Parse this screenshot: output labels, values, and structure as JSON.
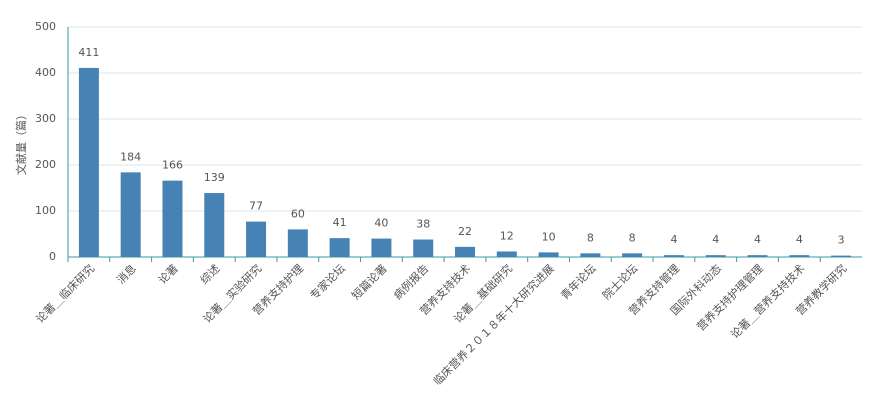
{
  "chart_data": {
    "type": "bar",
    "y_label": "文献量（篇）",
    "categories": [
      "论著＿临床研究",
      "消息",
      "论著",
      "综述",
      "论著＿实验研究",
      "营养支持护理",
      "专家论坛",
      "短篇论著",
      "病例报告",
      "营养支持技术",
      "论著＿基础研究",
      "临床营养２０１８年十大研究进展",
      "青年论坛",
      "院士论坛",
      "营养支持管理",
      "国际外科动态",
      "营养支持护理管理",
      "论著＿营养支持技术",
      "营养教学研究"
    ],
    "values": [
      411,
      184,
      166,
      139,
      77,
      60,
      41,
      40,
      38,
      22,
      12,
      10,
      8,
      8,
      4,
      4,
      4,
      4,
      3
    ],
    "color": "#4682b4",
    "ylim": [
      0,
      500
    ],
    "yticks": [
      0,
      100,
      200,
      300,
      400,
      500
    ],
    "grid": true
  }
}
